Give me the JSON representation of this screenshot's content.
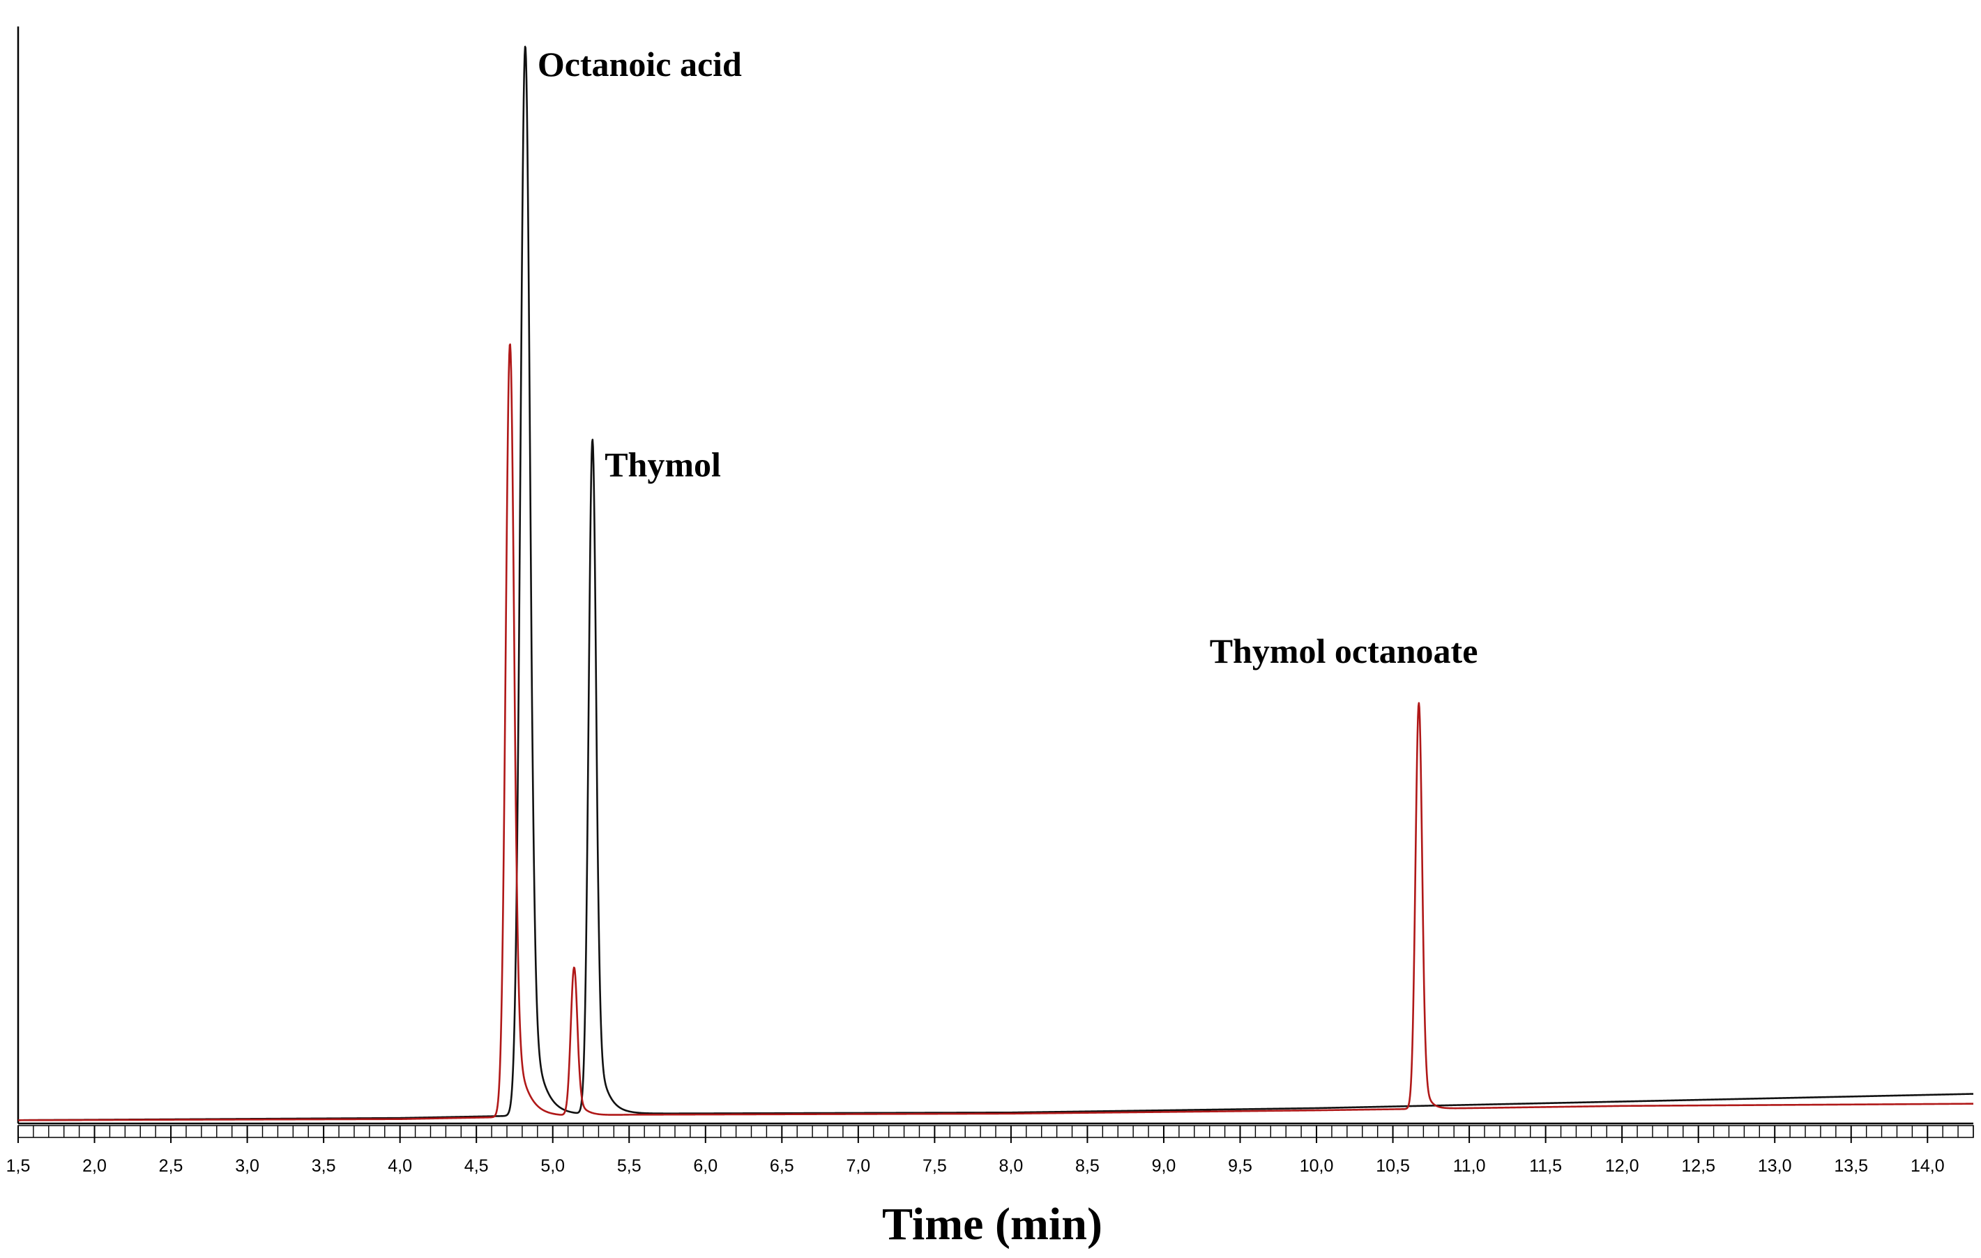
{
  "chart_data": {
    "type": "line",
    "title": "",
    "xlabel": "Time (min)",
    "ylabel": "",
    "xlim": [
      1.5,
      14.3
    ],
    "ylim": [
      0,
      100
    ],
    "grid": false,
    "x_ticks": [
      "1,5",
      "2,0",
      "2,5",
      "3,0",
      "3,5",
      "4,0",
      "4,5",
      "5,0",
      "5,5",
      "6,0",
      "6,5",
      "7,0",
      "7,5",
      "8,0",
      "8,5",
      "9,0",
      "9,5",
      "10,0",
      "10,5",
      "11,0",
      "11,5",
      "12,0",
      "12,5",
      "13,0",
      "13,5",
      "14,0"
    ],
    "x_tick_values": [
      1.5,
      2.0,
      2.5,
      3.0,
      3.5,
      4.0,
      4.5,
      5.0,
      5.5,
      6.0,
      6.5,
      7.0,
      7.5,
      8.0,
      8.5,
      9.0,
      9.5,
      10.0,
      10.5,
      11.0,
      11.5,
      12.0,
      12.5,
      13.0,
      13.5,
      14.0
    ],
    "minor_tick_step": 0.1,
    "series": [
      {
        "name": "black trace",
        "color": "#111111",
        "baseline": [
          [
            1.5,
            0.3
          ],
          [
            4.0,
            0.5
          ],
          [
            5.5,
            0.9
          ],
          [
            8.0,
            1.0
          ],
          [
            10.0,
            1.4
          ],
          [
            12.0,
            2.0
          ],
          [
            14.3,
            2.7
          ]
        ],
        "peaks": [
          {
            "rt": 4.82,
            "height": 97.5,
            "width": 0.032,
            "tail": 0.07
          },
          {
            "rt": 5.26,
            "height": 61.5,
            "width": 0.025,
            "tail": 0.06
          }
        ]
      },
      {
        "name": "red trace",
        "color": "#b01818",
        "baseline": [
          [
            1.5,
            0.3
          ],
          [
            4.0,
            0.4
          ],
          [
            5.5,
            0.8
          ],
          [
            8.0,
            0.9
          ],
          [
            10.0,
            1.2
          ],
          [
            12.0,
            1.6
          ],
          [
            14.3,
            1.8
          ]
        ],
        "peaks": [
          {
            "rt": 4.72,
            "height": 70.5,
            "width": 0.028,
            "tail": 0.07
          },
          {
            "rt": 5.14,
            "height": 13.5,
            "width": 0.022,
            "tail": 0.05
          },
          {
            "rt": 10.67,
            "height": 37.0,
            "width": 0.022,
            "tail": 0.035
          }
        ]
      }
    ],
    "annotations": [
      {
        "text": "Octanoic acid",
        "x": 4.9,
        "y": 95.5
      },
      {
        "text": "Thymol",
        "x": 5.34,
        "y": 59.0
      },
      {
        "text": "Thymol octanoate",
        "x": 9.3,
        "y": 42.0
      }
    ]
  }
}
